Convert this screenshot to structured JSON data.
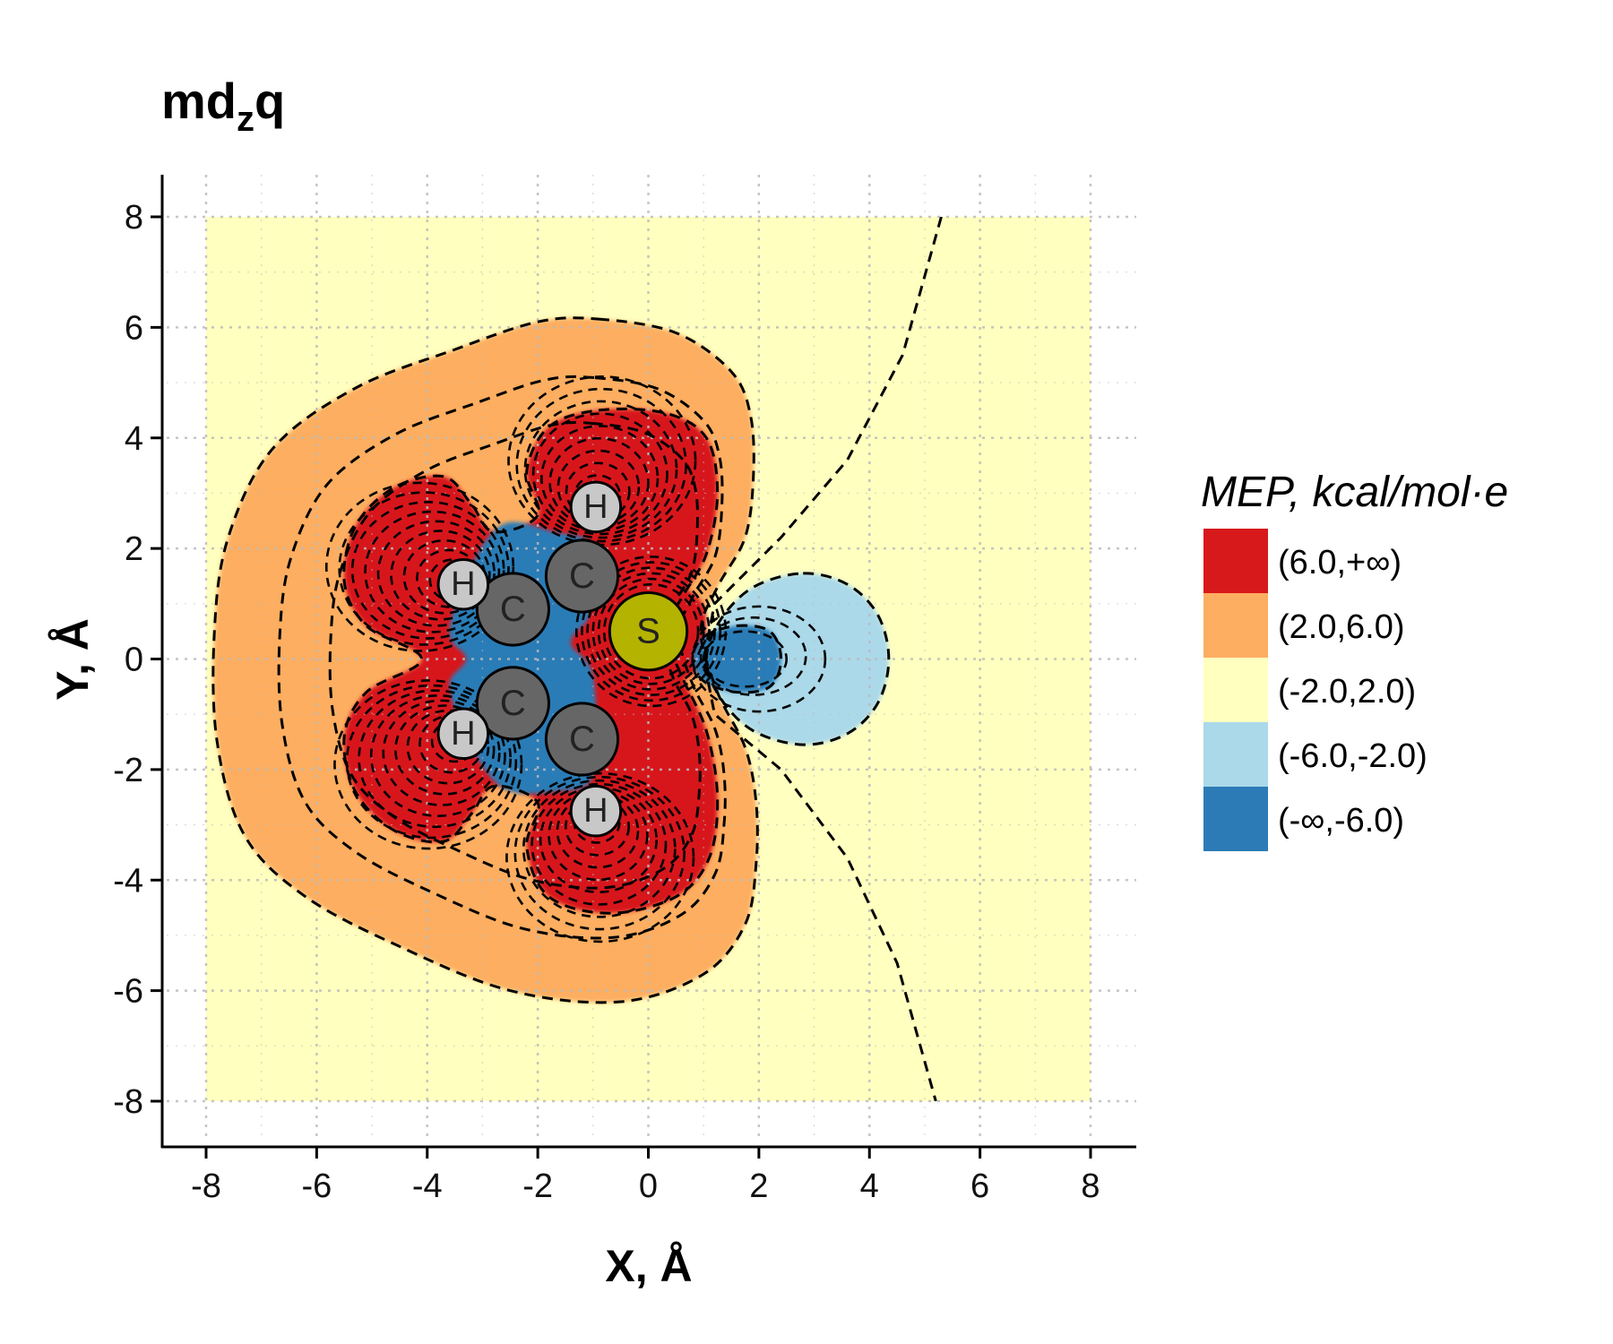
{
  "colors": {
    "panel_background": "#ffffbf",
    "level_red": "#d7191c",
    "level_orange": "#fdae61",
    "level_yellow": "#ffffbf",
    "level_lightblue": "#abd9e9",
    "level_blue": "#2c7bb6",
    "atom_C": "#666666",
    "atom_H": "#c8c8c8",
    "atom_S": "#b3b300",
    "contour_line": "#000000",
    "grid": "#bbbbbb"
  },
  "chart_data": {
    "type": "contour",
    "title_main": "md",
    "title_subscript": "z",
    "title_suffix": "q",
    "xlabel": "X, Å",
    "ylabel": "Y, Å",
    "xlim": [
      -8,
      8
    ],
    "ylim": [
      -8,
      8
    ],
    "x_ticks": [
      "-8",
      "-6",
      "-4",
      "-2",
      "0",
      "2",
      "4",
      "6",
      "8"
    ],
    "y_ticks": [
      "-8",
      "-6",
      "-4",
      "-2",
      "0",
      "2",
      "4",
      "6",
      "8"
    ],
    "grid": true,
    "grid_style": "dotted",
    "contour_line_style": "dashed",
    "legend": {
      "title": "MEP, kcal/mol·e",
      "placement": "right",
      "entries": [
        {
          "label": "(6.0,+∞)",
          "color": "#d7191c"
        },
        {
          "label": "(2.0,6.0)",
          "color": "#fdae61"
        },
        {
          "label": "(-2.0,2.0)",
          "color": "#ffffbf"
        },
        {
          "label": "(-6.0,-2.0)",
          "color": "#abd9e9"
        },
        {
          "label": "(-∞,-6.0)",
          "color": "#2c7bb6"
        }
      ]
    },
    "atoms": [
      {
        "element": "S",
        "label": "S",
        "x": 0.0,
        "y": 0.5
      },
      {
        "element": "C",
        "label": "C",
        "x": -1.2,
        "y": 1.5
      },
      {
        "element": "C",
        "label": "C",
        "x": -2.45,
        "y": 0.9
      },
      {
        "element": "C",
        "label": "C",
        "x": -2.45,
        "y": -0.8
      },
      {
        "element": "C",
        "label": "C",
        "x": -1.2,
        "y": -1.45
      },
      {
        "element": "H",
        "label": "H",
        "x": -0.95,
        "y": 2.75
      },
      {
        "element": "H",
        "label": "H",
        "x": -3.35,
        "y": 1.35
      },
      {
        "element": "H",
        "label": "H",
        "x": -3.35,
        "y": -1.35
      },
      {
        "element": "H",
        "label": "H",
        "x": -0.95,
        "y": -2.75
      }
    ],
    "regions": [
      {
        "level": "orange",
        "points": [
          [
            -0.9,
            6.15
          ],
          [
            0.5,
            5.9
          ],
          [
            1.5,
            5.2
          ],
          [
            1.85,
            4.4
          ],
          [
            1.9,
            3.3
          ],
          [
            1.75,
            2.2
          ],
          [
            1.25,
            1.3
          ],
          [
            0.95,
            0.5
          ],
          [
            1.25,
            -0.6
          ],
          [
            1.75,
            -1.6
          ],
          [
            1.95,
            -2.6
          ],
          [
            1.95,
            -3.7
          ],
          [
            1.75,
            -4.8
          ],
          [
            1.0,
            -5.7
          ],
          [
            -0.5,
            -6.2
          ],
          [
            -2.5,
            -6.0
          ],
          [
            -4.5,
            -5.2
          ],
          [
            -6.2,
            -4.3
          ],
          [
            -7.3,
            -3.2
          ],
          [
            -7.8,
            -1.5
          ],
          [
            -7.85,
            0.5
          ],
          [
            -7.6,
            2.2
          ],
          [
            -6.8,
            3.8
          ],
          [
            -5.3,
            4.9
          ],
          [
            -3.5,
            5.6
          ],
          [
            -2.0,
            6.1
          ]
        ]
      },
      {
        "level": "red",
        "points": [
          [
            -0.9,
            4.5
          ],
          [
            0.3,
            4.45
          ],
          [
            1.05,
            4.0
          ],
          [
            1.25,
            3.0
          ],
          [
            1.05,
            1.9
          ],
          [
            0.6,
            1.1
          ],
          [
            0.3,
            0.5
          ],
          [
            0.6,
            -0.3
          ],
          [
            1.05,
            -1.3
          ],
          [
            1.25,
            -2.5
          ],
          [
            1.1,
            -3.6
          ],
          [
            0.5,
            -4.3
          ],
          [
            -0.7,
            -4.6
          ],
          [
            -1.8,
            -4.3
          ],
          [
            -2.2,
            -3.4
          ],
          [
            -2.0,
            -2.6
          ],
          [
            -2.8,
            -2.3
          ],
          [
            -3.2,
            -2.8
          ],
          [
            -3.7,
            -3.3
          ],
          [
            -4.6,
            -3.1
          ],
          [
            -5.3,
            -2.4
          ],
          [
            -5.5,
            -1.4
          ],
          [
            -5.1,
            -0.6
          ],
          [
            -4.1,
            0.0
          ],
          [
            -5.1,
            0.6
          ],
          [
            -5.5,
            1.4
          ],
          [
            -5.3,
            2.4
          ],
          [
            -4.6,
            3.1
          ],
          [
            -3.7,
            3.3
          ],
          [
            -3.2,
            2.8
          ],
          [
            -2.8,
            2.3
          ],
          [
            -2.0,
            2.6
          ],
          [
            -2.2,
            3.4
          ],
          [
            -1.8,
            4.2
          ]
        ]
      },
      {
        "level": "red_s",
        "points": [
          [
            0.0,
            1.55
          ],
          [
            0.9,
            1.1
          ],
          [
            1.05,
            0.5
          ],
          [
            0.9,
            -0.2
          ],
          [
            0.0,
            -0.55
          ],
          [
            -0.9,
            -0.2
          ],
          [
            -1.05,
            0.5
          ],
          [
            -0.9,
            1.2
          ]
        ]
      },
      {
        "level": "blue",
        "points": [
          [
            -1.7,
            2.3
          ],
          [
            -1.0,
            2.05
          ],
          [
            -1.0,
            0.9
          ],
          [
            -1.4,
            0.3
          ],
          [
            -1.0,
            -0.3
          ],
          [
            -1.0,
            -2.1
          ],
          [
            -1.7,
            -2.4
          ],
          [
            -2.6,
            -2.35
          ],
          [
            -3.2,
            -1.6
          ],
          [
            -3.6,
            -0.5
          ],
          [
            -3.3,
            0.0
          ],
          [
            -3.6,
            0.5
          ],
          [
            -3.2,
            1.7
          ],
          [
            -2.6,
            2.45
          ]
        ]
      },
      {
        "level": "lightblue_lobe",
        "points": [
          [
            2.8,
            1.55
          ],
          [
            3.6,
            1.35
          ],
          [
            4.15,
            0.8
          ],
          [
            4.35,
            0.0
          ],
          [
            4.15,
            -0.8
          ],
          [
            3.6,
            -1.35
          ],
          [
            2.8,
            -1.55
          ],
          [
            1.9,
            -1.3
          ],
          [
            1.3,
            -0.7
          ],
          [
            1.05,
            0.0
          ],
          [
            1.3,
            0.7
          ],
          [
            1.9,
            1.3
          ]
        ]
      },
      {
        "level": "blue_lobe",
        "points": [
          [
            1.6,
            0.6
          ],
          [
            2.2,
            0.5
          ],
          [
            2.4,
            0.0
          ],
          [
            2.2,
            -0.5
          ],
          [
            1.6,
            -0.6
          ],
          [
            1.0,
            -0.4
          ],
          [
            0.8,
            0.0
          ],
          [
            1.0,
            0.4
          ]
        ]
      }
    ]
  }
}
